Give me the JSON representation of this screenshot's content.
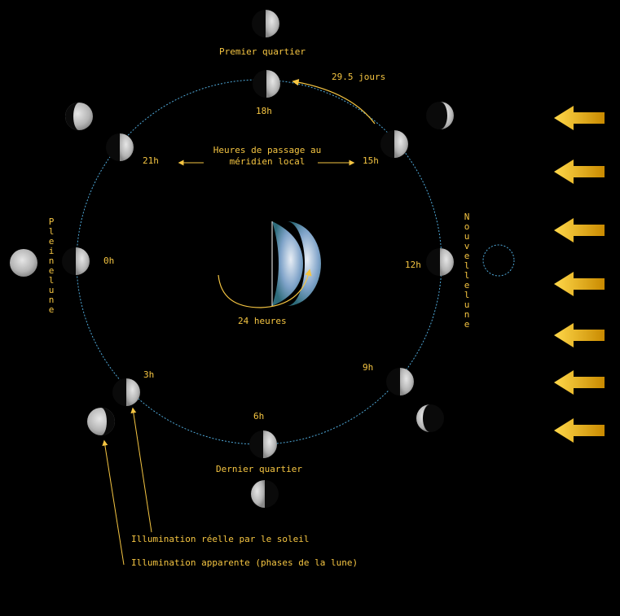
{
  "labels": {
    "premier_quartier": "Premier quartier",
    "dernier_quartier": "Dernier quartier",
    "period": "29.5 jours",
    "hours_title_line1": "Heures de passage au",
    "hours_title_line2": "méridien local",
    "rotation": "24 heures",
    "pleine_lune": "Pleine lune",
    "nouvelle_lune": "Nouvelle lune",
    "illum_reelle": "Illumination réelle par le soleil",
    "illum_apparente": "Illumination apparente (phases de la lune)"
  },
  "hours": {
    "h0": "0h",
    "h3": "3h",
    "h6": "6h",
    "h9": "9h",
    "h12": "12h",
    "h15": "15h",
    "h18": "18h",
    "h21": "21h"
  },
  "colors": {
    "background": "#000000",
    "label": "#f5c542",
    "orbit": "#4fa8d8",
    "sun_arrow": "#f2b705",
    "moon_lit": "#c8c8c8",
    "moon_dark": "#0a0a0a"
  },
  "icons": {
    "sun_rays": "left-arrow-icon",
    "earth": "earth-icon",
    "moon": "moon-icon"
  }
}
